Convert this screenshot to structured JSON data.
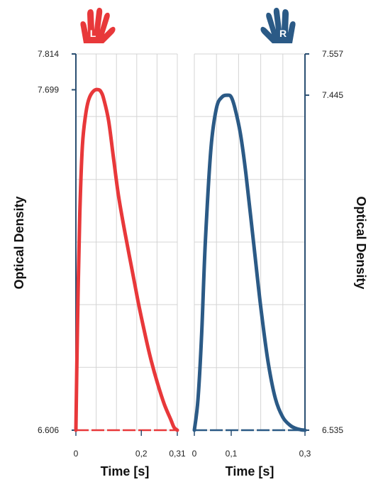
{
  "colors": {
    "left": "#e8383a",
    "right": "#2b5a86",
    "grid": "#d4d4d4",
    "dash": "#f3c0c0",
    "dash_right": "#c9d9ea"
  },
  "icons": {
    "left": "left-hand-icon",
    "right": "right-hand-icon"
  },
  "chart_data": [
    {
      "type": "line",
      "hand_label": "L",
      "xlabel": "Time [s]",
      "ylabel": "Optical Density",
      "xlim": [
        0,
        0.31
      ],
      "ylim": [
        6.606,
        7.814
      ],
      "x_tick_labels": [
        {
          "value": 0,
          "label": "0"
        },
        {
          "value": 0.2,
          "label": "0,2"
        },
        {
          "value": 0.31,
          "label": "0,31"
        }
      ],
      "x_grid": [
        0,
        0.062,
        0.124,
        0.186,
        0.248,
        0.31
      ],
      "y_tick_labels": [
        {
          "value": 7.814,
          "label": "7.814"
        },
        {
          "value": 7.699,
          "label": "7.699"
        },
        {
          "value": 6.606,
          "label": "6.606"
        }
      ],
      "y_grid": [
        6.606,
        6.808,
        7.009,
        7.21,
        7.411,
        7.613,
        7.814
      ],
      "series": [
        {
          "x": [
            0.0,
            0.005,
            0.012,
            0.02,
            0.03,
            0.04,
            0.055,
            0.07,
            0.078,
            0.085,
            0.1,
            0.115,
            0.13,
            0.15,
            0.17,
            0.19,
            0.21,
            0.23,
            0.25,
            0.27,
            0.29,
            0.3,
            0.31
          ],
          "y": [
            6.606,
            6.95,
            7.3,
            7.52,
            7.62,
            7.67,
            7.696,
            7.699,
            7.69,
            7.67,
            7.6,
            7.48,
            7.36,
            7.24,
            7.13,
            7.02,
            6.92,
            6.83,
            6.755,
            6.69,
            6.64,
            6.615,
            6.606
          ]
        }
      ]
    },
    {
      "type": "line",
      "hand_label": "R",
      "xlabel": "Time [s]",
      "ylabel": "Optical Density",
      "xlim": [
        0,
        0.3
      ],
      "ylim": [
        6.535,
        7.557
      ],
      "x_tick_labels": [
        {
          "value": 0,
          "label": "0"
        },
        {
          "value": 0.1,
          "label": "0,1"
        },
        {
          "value": 0.3,
          "label": "0,3"
        }
      ],
      "x_grid": [
        0,
        0.06,
        0.12,
        0.18,
        0.24,
        0.3
      ],
      "y_tick_labels": [
        {
          "value": 7.557,
          "label": "7.557"
        },
        {
          "value": 7.445,
          "label": "7.445"
        },
        {
          "value": 6.535,
          "label": "6.535"
        }
      ],
      "y_grid": [
        6.535,
        6.705,
        6.876,
        7.046,
        7.216,
        7.387,
        7.557
      ],
      "series": [
        {
          "x": [
            0.0,
            0.01,
            0.02,
            0.03,
            0.045,
            0.06,
            0.075,
            0.09,
            0.1,
            0.11,
            0.125,
            0.14,
            0.16,
            0.18,
            0.2,
            0.22,
            0.24,
            0.26,
            0.275,
            0.29,
            0.3
          ],
          "y": [
            6.535,
            6.62,
            6.8,
            7.05,
            7.3,
            7.41,
            7.44,
            7.445,
            7.44,
            7.41,
            7.34,
            7.23,
            7.05,
            6.87,
            6.72,
            6.62,
            6.57,
            6.548,
            6.54,
            6.536,
            6.535
          ]
        }
      ]
    }
  ]
}
